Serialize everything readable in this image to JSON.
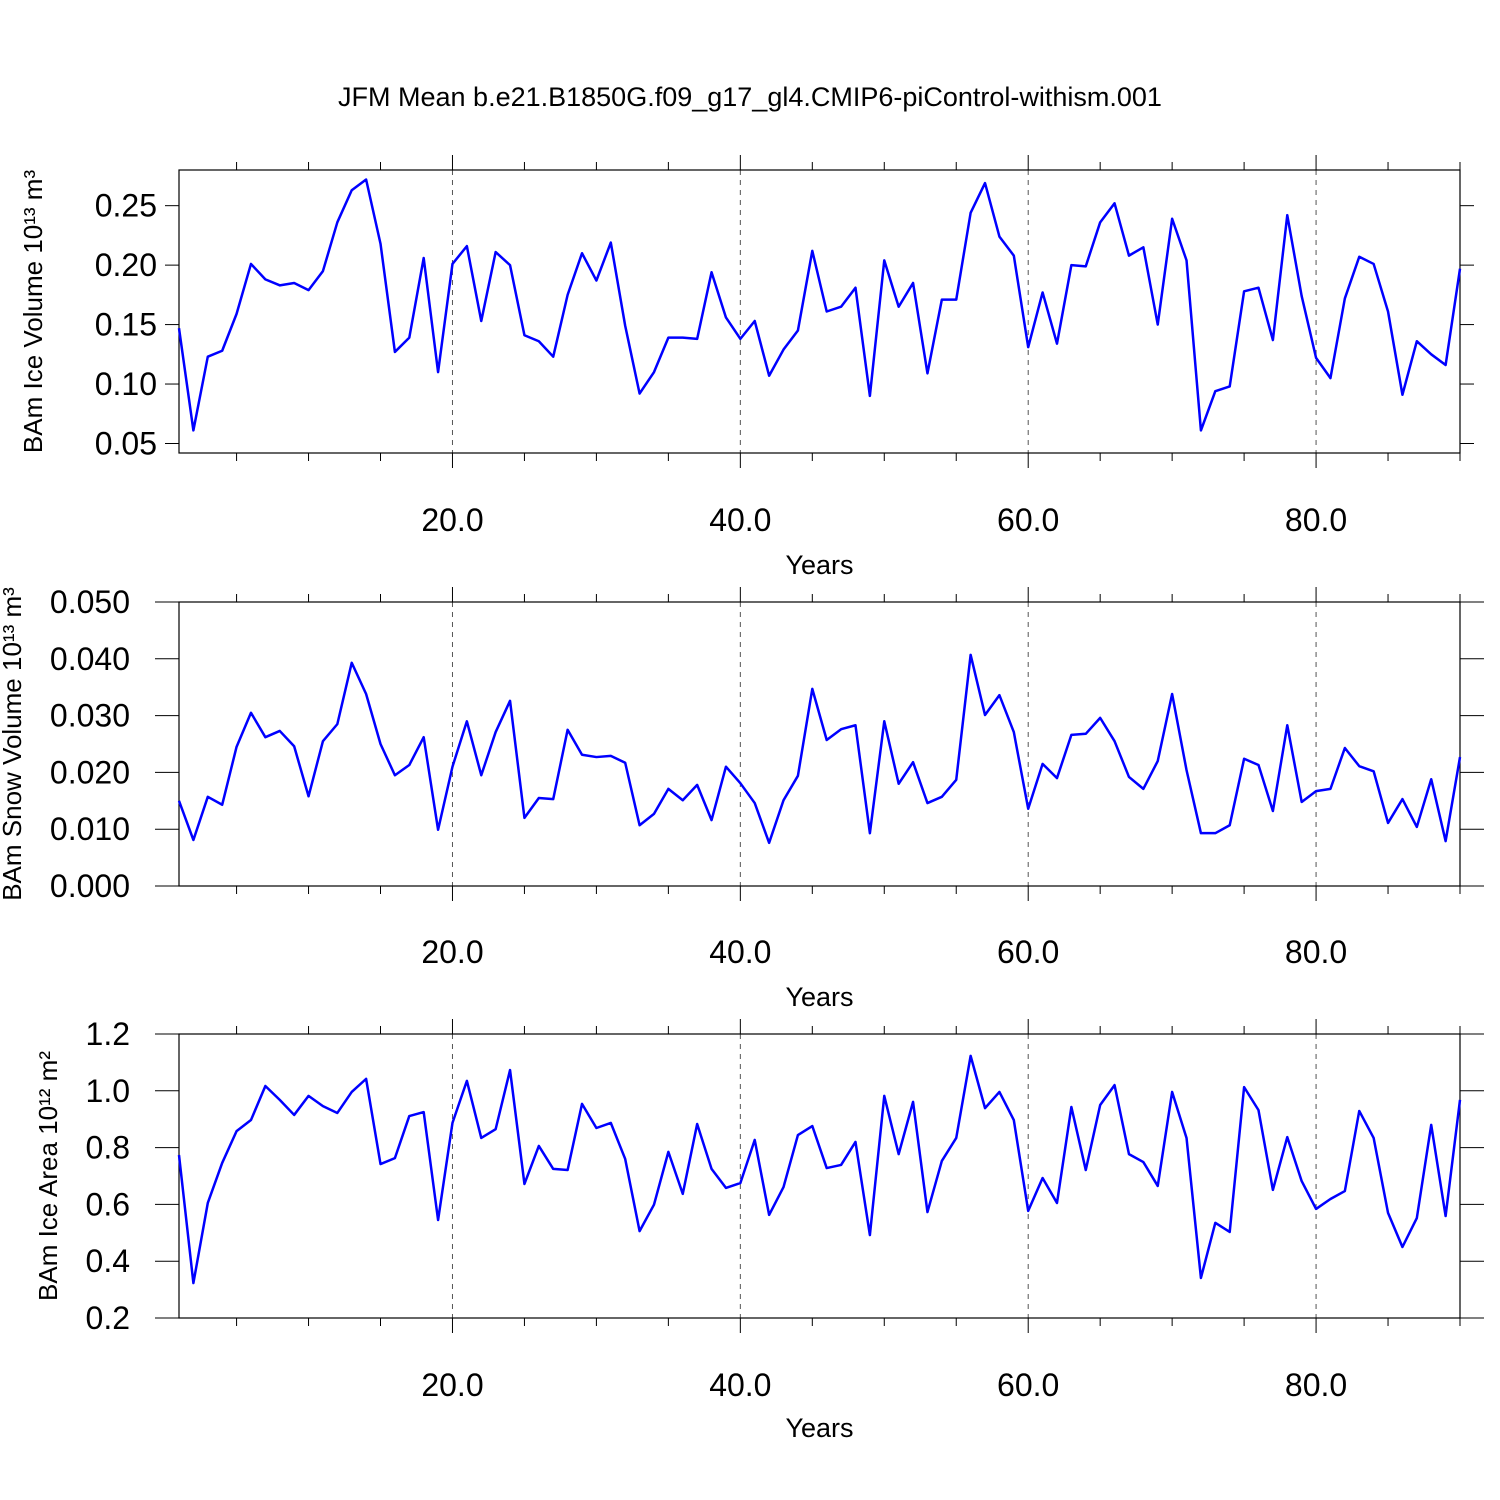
{
  "title": "JFM Mean b.e21.B1850G.f09_g17_gl4.CMIP6-piControl-withism.001",
  "chart_data": [
    {
      "type": "line",
      "xlabel": "Years",
      "ylabel": "BAm Ice Volume 10¹³ m³",
      "x": [
        1,
        2,
        3,
        4,
        5,
        6,
        7,
        8,
        9,
        10,
        11,
        12,
        13,
        14,
        15,
        16,
        17,
        18,
        19,
        20,
        21,
        22,
        23,
        24,
        25,
        26,
        27,
        28,
        29,
        30,
        31,
        32,
        33,
        34,
        35,
        36,
        37,
        38,
        39,
        40,
        41,
        42,
        43,
        44,
        45,
        46,
        47,
        48,
        49,
        50,
        51,
        52,
        53,
        54,
        55,
        56,
        57,
        58,
        59,
        60,
        61,
        62,
        63,
        64,
        65,
        66,
        67,
        68,
        69,
        70,
        71,
        72,
        73,
        74,
        75,
        76,
        77,
        78,
        79,
        80,
        81,
        82,
        83,
        84,
        85,
        86,
        87,
        88,
        89,
        90
      ],
      "series": [
        {
          "color": "#0000ff",
          "values": [
            0.147,
            0.061,
            0.123,
            0.128,
            0.159,
            0.201,
            0.188,
            0.183,
            0.185,
            0.179,
            0.195,
            0.236,
            0.263,
            0.272,
            0.218,
            0.127,
            0.139,
            0.206,
            0.11,
            0.201,
            0.216,
            0.153,
            0.211,
            0.2,
            0.141,
            0.136,
            0.123,
            0.175,
            0.21,
            0.187,
            0.219,
            0.149,
            0.092,
            0.11,
            0.139,
            0.139,
            0.138,
            0.194,
            0.156,
            0.138,
            0.153,
            0.107,
            0.129,
            0.145,
            0.212,
            0.161,
            0.165,
            0.181,
            0.09,
            0.204,
            0.165,
            0.185,
            0.109,
            0.171,
            0.171,
            0.244,
            0.269,
            0.224,
            0.208,
            0.131,
            0.177,
            0.134,
            0.2,
            0.199,
            0.236,
            0.252,
            0.208,
            0.215,
            0.15,
            0.239,
            0.204,
            0.061,
            0.094,
            0.098,
            0.178,
            0.181,
            0.137,
            0.242,
            0.174,
            0.122,
            0.105,
            0.172,
            0.207,
            0.201,
            0.161,
            0.091,
            0.136,
            0.125,
            0.116,
            0.197
          ]
        }
      ],
      "xlim": [
        1,
        90
      ],
      "xticks": [
        {
          "value": 20,
          "label": "20.0"
        },
        {
          "value": 40,
          "label": "40.0"
        },
        {
          "value": 60,
          "label": "60.0"
        },
        {
          "value": 80,
          "label": "80.0"
        }
      ],
      "xminorticks": [
        5,
        10,
        15,
        25,
        30,
        35,
        45,
        50,
        55,
        65,
        70,
        75,
        85,
        90
      ],
      "ylim": [
        0.042,
        0.28
      ],
      "yticks": [
        0.05,
        {
          "value": 0.1,
          "label": "0.10"
        },
        0.15,
        {
          "value": 0.2,
          "label": "0.20"
        },
        0.25
      ],
      "grid": true
    },
    {
      "type": "line",
      "xlabel": "Years",
      "ylabel": "BAm Snow Volume 10¹³ m³",
      "x": [
        1,
        2,
        3,
        4,
        5,
        6,
        7,
        8,
        9,
        10,
        11,
        12,
        13,
        14,
        15,
        16,
        17,
        18,
        19,
        20,
        21,
        22,
        23,
        24,
        25,
        26,
        27,
        28,
        29,
        30,
        31,
        32,
        33,
        34,
        35,
        36,
        37,
        38,
        39,
        40,
        41,
        42,
        43,
        44,
        45,
        46,
        47,
        48,
        49,
        50,
        51,
        52,
        53,
        54,
        55,
        56,
        57,
        58,
        59,
        60,
        61,
        62,
        63,
        64,
        65,
        66,
        67,
        68,
        69,
        70,
        71,
        72,
        73,
        74,
        75,
        76,
        77,
        78,
        79,
        80,
        81,
        82,
        83,
        84,
        85,
        86,
        87,
        88,
        89,
        90
      ],
      "series": [
        {
          "color": "#0000ff",
          "values": [
            0.015,
            0.0081,
            0.0157,
            0.0143,
            0.0245,
            0.0305,
            0.0262,
            0.0273,
            0.0246,
            0.0158,
            0.0255,
            0.0285,
            0.0393,
            0.0338,
            0.025,
            0.0195,
            0.0213,
            0.0262,
            0.0099,
            0.021,
            0.029,
            0.0195,
            0.0271,
            0.0326,
            0.012,
            0.0155,
            0.0153,
            0.0275,
            0.0231,
            0.0227,
            0.0229,
            0.0217,
            0.0107,
            0.0127,
            0.0171,
            0.0151,
            0.0178,
            0.0116,
            0.021,
            0.0181,
            0.0146,
            0.0076,
            0.0151,
            0.0194,
            0.0347,
            0.0257,
            0.0276,
            0.0283,
            0.0093,
            0.029,
            0.018,
            0.0218,
            0.0146,
            0.0157,
            0.0187,
            0.0407,
            0.0301,
            0.0336,
            0.0271,
            0.0136,
            0.0215,
            0.019,
            0.0266,
            0.0268,
            0.0296,
            0.0255,
            0.0192,
            0.0171,
            0.022,
            0.0338,
            0.0204,
            0.0093,
            0.0093,
            0.0107,
            0.0224,
            0.0213,
            0.0132,
            0.0283,
            0.0148,
            0.0167,
            0.0171,
            0.0243,
            0.0211,
            0.0202,
            0.0111,
            0.0153,
            0.0104,
            0.0188,
            0.0079,
            0.0227
          ]
        }
      ],
      "xlim": [
        1,
        90
      ],
      "xticks": [
        {
          "value": 20,
          "label": "20.0"
        },
        {
          "value": 40,
          "label": "40.0"
        },
        {
          "value": 60,
          "label": "60.0"
        },
        {
          "value": 80,
          "label": "80.0"
        }
      ],
      "xminorticks": [
        5,
        10,
        15,
        25,
        30,
        35,
        45,
        50,
        55,
        65,
        70,
        75,
        85,
        90
      ],
      "ylim": [
        0,
        0.05
      ],
      "yticks": [
        {
          "value": 0,
          "label": "0.000"
        },
        {
          "value": 0.01,
          "label": "0.010"
        },
        {
          "value": 0.02,
          "label": "0.020"
        },
        {
          "value": 0.03,
          "label": "0.030"
        },
        {
          "value": 0.04,
          "label": "0.040"
        },
        {
          "value": 0.05,
          "label": "0.050"
        }
      ],
      "grid": true
    },
    {
      "type": "line",
      "xlabel": "Years",
      "ylabel": "BAm Ice Area 10¹² m²",
      "x": [
        1,
        2,
        3,
        4,
        5,
        6,
        7,
        8,
        9,
        10,
        11,
        12,
        13,
        14,
        15,
        16,
        17,
        18,
        19,
        20,
        21,
        22,
        23,
        24,
        25,
        26,
        27,
        28,
        29,
        30,
        31,
        32,
        33,
        34,
        35,
        36,
        37,
        38,
        39,
        40,
        41,
        42,
        43,
        44,
        45,
        46,
        47,
        48,
        49,
        50,
        51,
        52,
        53,
        54,
        55,
        56,
        57,
        58,
        59,
        60,
        61,
        62,
        63,
        64,
        65,
        66,
        67,
        68,
        69,
        70,
        71,
        72,
        73,
        74,
        75,
        76,
        77,
        78,
        79,
        80,
        81,
        82,
        83,
        84,
        85,
        86,
        87,
        88,
        89,
        90
      ],
      "series": [
        {
          "color": "#0000ff",
          "values": [
            0.774,
            0.323,
            0.605,
            0.746,
            0.858,
            0.897,
            1.017,
            0.968,
            0.915,
            0.982,
            0.946,
            0.922,
            0.996,
            1.042,
            0.742,
            0.763,
            0.911,
            0.925,
            0.545,
            0.887,
            1.035,
            0.834,
            0.865,
            1.073,
            0.672,
            0.806,
            0.725,
            0.721,
            0.954,
            0.869,
            0.887,
            0.76,
            0.506,
            0.599,
            0.785,
            0.637,
            0.883,
            0.725,
            0.658,
            0.675,
            0.827,
            0.563,
            0.661,
            0.844,
            0.876,
            0.728,
            0.739,
            0.82,
            0.492,
            0.982,
            0.777,
            0.961,
            0.573,
            0.753,
            0.834,
            1.123,
            0.939,
            0.996,
            0.897,
            0.577,
            0.693,
            0.605,
            0.943,
            0.721,
            0.95,
            1.02,
            0.777,
            0.749,
            0.665,
            0.996,
            0.834,
            0.341,
            0.535,
            0.503,
            1.013,
            0.932,
            0.651,
            0.837,
            0.682,
            0.584,
            0.619,
            0.647,
            0.929,
            0.834,
            0.57,
            0.45,
            0.552,
            0.88,
            0.559,
            0.968
          ]
        }
      ],
      "xlim": [
        1,
        90
      ],
      "xticks": [
        {
          "value": 20,
          "label": "20.0"
        },
        {
          "value": 40,
          "label": "40.0"
        },
        {
          "value": 60,
          "label": "60.0"
        },
        {
          "value": 80,
          "label": "80.0"
        }
      ],
      "xminorticks": [
        5,
        10,
        15,
        25,
        30,
        35,
        45,
        50,
        55,
        65,
        70,
        75,
        85,
        90
      ],
      "ylim": [
        0.2,
        1.2
      ],
      "yticks": [
        0.2,
        0.4,
        0.6,
        0.8,
        {
          "value": 1,
          "label": "1.0"
        },
        1.2
      ],
      "grid": true
    }
  ]
}
